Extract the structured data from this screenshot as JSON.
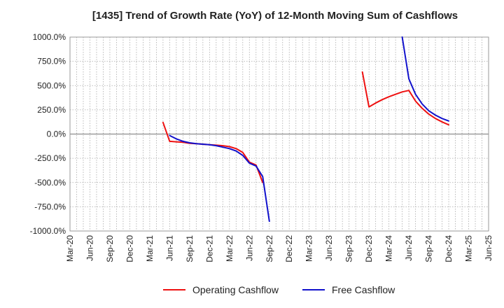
{
  "chart_data": {
    "type": "line",
    "title": "[1435]  Trend of Growth Rate (YoY) of 12-Month Moving Sum of Cashflows",
    "xlabel": "",
    "ylabel": "",
    "ylim": [
      -1000,
      1000
    ],
    "y_ticks": [
      "1000.0%",
      "750.0%",
      "500.0%",
      "250.0%",
      "0.0%",
      "-250.0%",
      "-500.0%",
      "-750.0%",
      "-1000.0%"
    ],
    "x_ticks": [
      "Mar-20",
      "Jun-20",
      "Sep-20",
      "Dec-20",
      "Mar-21",
      "Jun-21",
      "Sep-21",
      "Dec-21",
      "Mar-22",
      "Jun-22",
      "Sep-22",
      "Dec-22",
      "Mar-23",
      "Jun-23",
      "Sep-23",
      "Dec-23",
      "Mar-24",
      "Jun-24",
      "Sep-24",
      "Dec-24",
      "Mar-25",
      "Jun-25"
    ],
    "x_range": [
      "2020-03",
      "2025-06"
    ],
    "grid": true,
    "legend_position": "bottom",
    "series": [
      {
        "name": "Operating Cashflow",
        "color": "#ee1111",
        "points": [
          [
            "2021-05",
            120
          ],
          [
            "2021-06",
            -75
          ],
          [
            "2021-07",
            -80
          ],
          [
            "2021-08",
            -85
          ],
          [
            "2021-09",
            -95
          ],
          [
            "2021-10",
            -100
          ],
          [
            "2021-11",
            -105
          ],
          [
            "2021-12",
            -110
          ],
          [
            "2022-01",
            -115
          ],
          [
            "2022-02",
            -120
          ],
          [
            "2022-03",
            -130
          ],
          [
            "2022-04",
            -150
          ],
          [
            "2022-05",
            -190
          ],
          [
            "2022-06",
            -290
          ],
          [
            "2022-07",
            -320
          ],
          [
            "2022-08",
            -500
          ],
          null,
          [
            "2023-11",
            640
          ],
          [
            "2023-12",
            280
          ],
          [
            "2024-01",
            320
          ],
          [
            "2024-02",
            355
          ],
          [
            "2024-03",
            385
          ],
          [
            "2024-04",
            410
          ],
          [
            "2024-05",
            435
          ],
          [
            "2024-06",
            450
          ],
          [
            "2024-07",
            340
          ],
          [
            "2024-08",
            265
          ],
          [
            "2024-09",
            205
          ],
          [
            "2024-10",
            160
          ],
          [
            "2024-11",
            125
          ],
          [
            "2024-12",
            95
          ]
        ]
      },
      {
        "name": "Free Cashflow",
        "color": "#1111cc",
        "points": [
          [
            "2021-06",
            -15
          ],
          [
            "2021-07",
            -50
          ],
          [
            "2021-08",
            -75
          ],
          [
            "2021-09",
            -90
          ],
          [
            "2021-10",
            -100
          ],
          [
            "2021-11",
            -105
          ],
          [
            "2021-12",
            -110
          ],
          [
            "2022-01",
            -120
          ],
          [
            "2022-02",
            -135
          ],
          [
            "2022-03",
            -150
          ],
          [
            "2022-04",
            -175
          ],
          [
            "2022-05",
            -220
          ],
          [
            "2022-06",
            -300
          ],
          [
            "2022-07",
            -330
          ],
          [
            "2022-08",
            -440
          ],
          [
            "2022-09",
            -900
          ],
          null,
          [
            "2024-05",
            1000
          ],
          [
            "2024-06",
            570
          ],
          [
            "2024-07",
            410
          ],
          [
            "2024-08",
            310
          ],
          [
            "2024-09",
            240
          ],
          [
            "2024-10",
            195
          ],
          [
            "2024-11",
            160
          ],
          [
            "2024-12",
            135
          ]
        ]
      }
    ]
  }
}
